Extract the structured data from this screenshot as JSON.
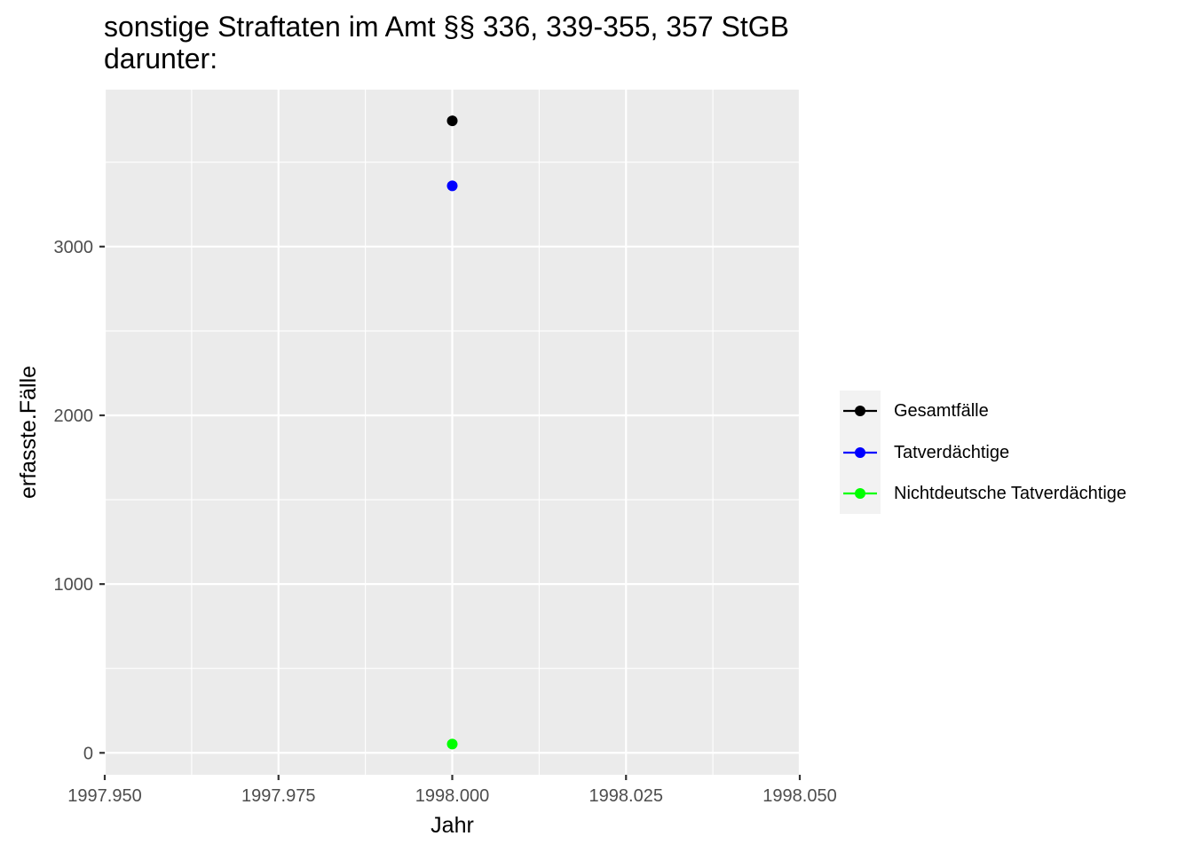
{
  "chart_data": {
    "type": "line",
    "title": "sonstige Straftaten im Amt §§ 336, 339-355, 357 StGB\ndarunter:",
    "xlabel": "Jahr",
    "ylabel": "erfasste.Fälle",
    "xlim": [
      1997.95,
      1998.05
    ],
    "ylim": [
      -130,
      3930
    ],
    "x_ticks": [
      1997.95,
      1997.975,
      1998.0,
      1998.025,
      1998.05
    ],
    "x_tick_labels": [
      "1997.950",
      "1997.975",
      "1998.000",
      "1998.025",
      "1998.050"
    ],
    "y_ticks": [
      0,
      1000,
      2000,
      3000
    ],
    "y_tick_labels": [
      "0",
      "1000",
      "2000",
      "3000"
    ],
    "grid": true,
    "legend_position": "right",
    "series": [
      {
        "name": "Gesamtfälle",
        "color": "#000000",
        "x": [
          1998.0
        ],
        "y": [
          3745
        ]
      },
      {
        "name": "Tatverdächtige",
        "color": "#0000ff",
        "x": [
          1998.0
        ],
        "y": [
          3360
        ]
      },
      {
        "name": "Nichtdeutsche Tatverdächtige",
        "color": "#00ff00",
        "x": [
          1998.0
        ],
        "y": [
          52
        ]
      }
    ]
  }
}
